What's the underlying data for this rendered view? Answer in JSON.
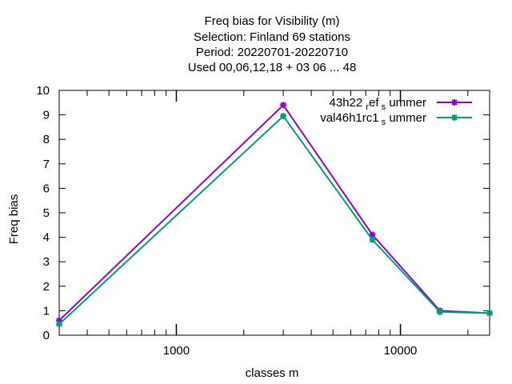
{
  "chart_data": {
    "type": "line",
    "title_lines": [
      "Freq bias  for Visibility (m)",
      "Selection: Finland     69 stations",
      "Period: 20220701-20220710",
      "Used  00,06,12,18  + 03 06 ... 48"
    ],
    "xlabel": "classes m",
    "ylabel": "Freq bias",
    "x_scale": "log",
    "xlim": [
      300,
      25000
    ],
    "ylim": [
      0,
      10
    ],
    "x_tick_labels": [
      "1000",
      "10000"
    ],
    "y_tick_labels": [
      "0",
      "1",
      "2",
      "3",
      "4",
      "5",
      "6",
      "7",
      "8",
      "9",
      "10"
    ],
    "legend_position": "top-right",
    "series": [
      {
        "legend_main": "43h22",
        "legend_sub1": "ref",
        "legend_mid": "s",
        "legend_tail": "ummer",
        "color": "#9400d3",
        "x": [
          300,
          3000,
          7500,
          15000,
          25000
        ],
        "y": [
          0.6,
          9.4,
          4.1,
          1.0,
          0.9
        ]
      },
      {
        "legend_main": "val46h1rc1",
        "legend_sub1": "",
        "legend_mid": "s",
        "legend_tail": "ummer",
        "color": "#009e73",
        "x": [
          300,
          3000,
          7500,
          15000,
          25000
        ],
        "y": [
          0.45,
          8.95,
          3.9,
          0.95,
          0.9
        ]
      }
    ]
  }
}
